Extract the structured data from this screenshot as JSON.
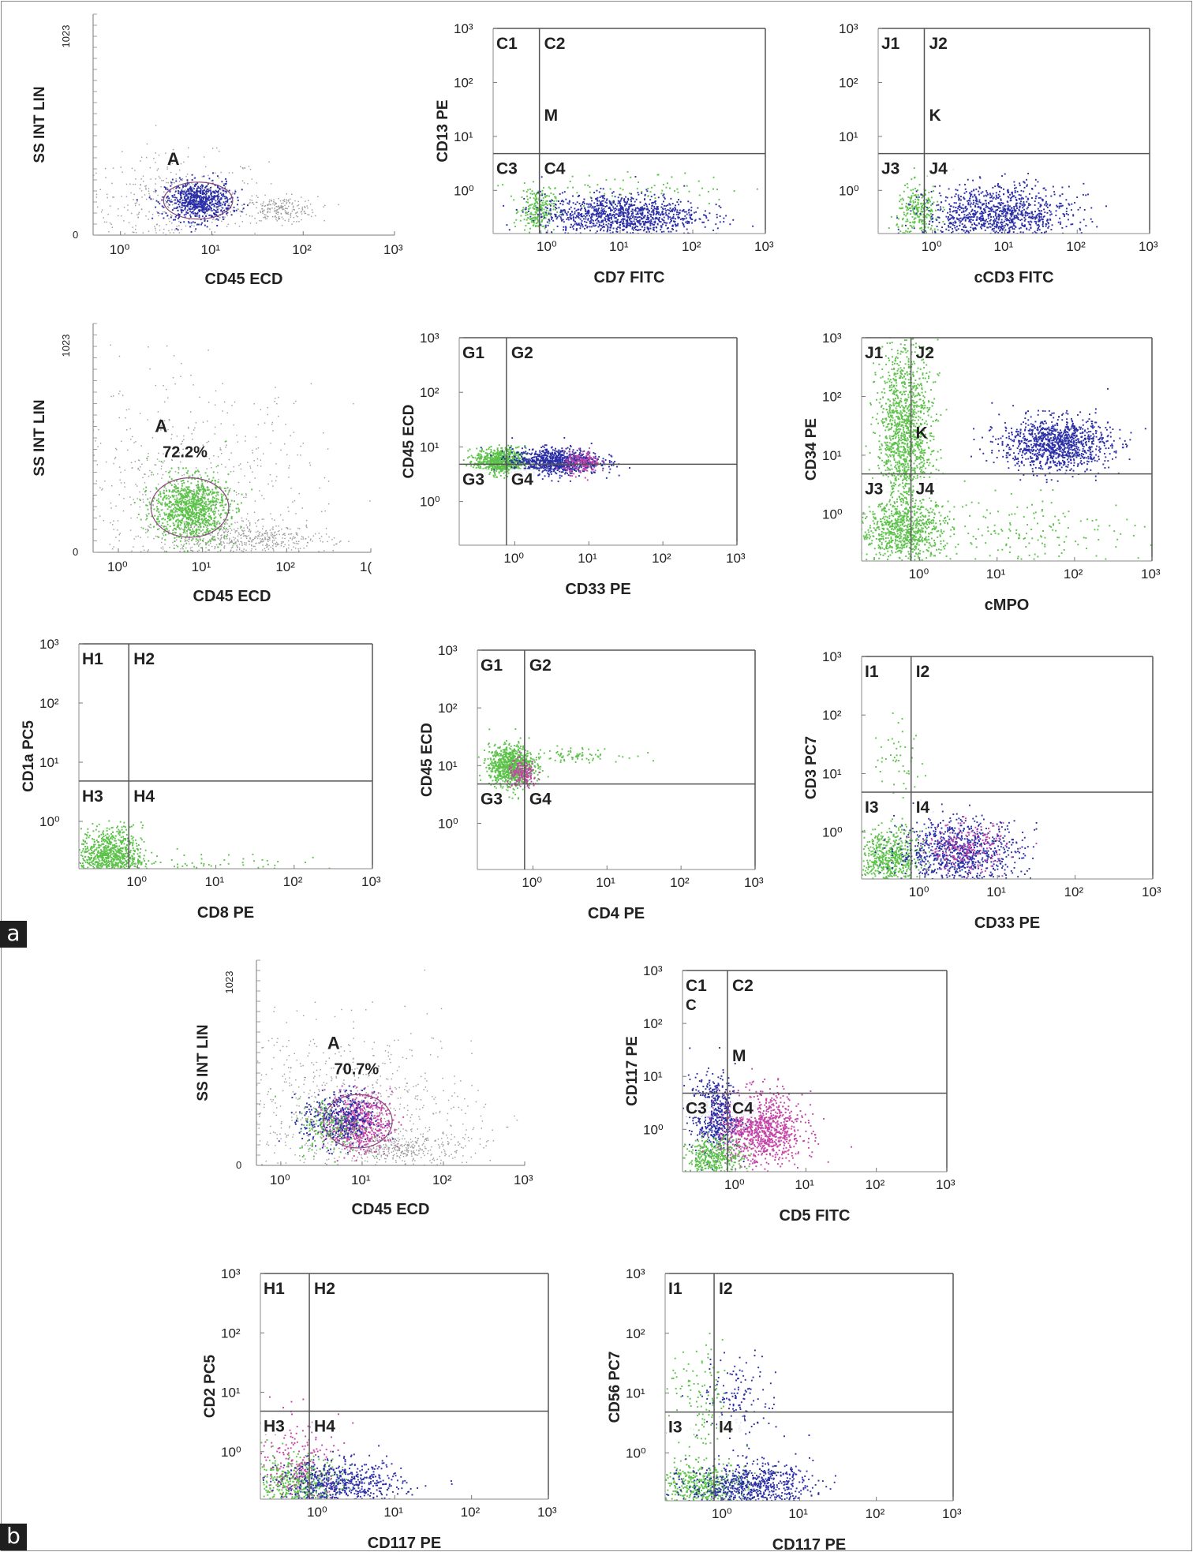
{
  "figure": {
    "panel_labels": [
      "a",
      "b"
    ],
    "colors": {
      "gray": "#9c9c9c",
      "blue": "#2b2fa6",
      "green": "#5cc24a",
      "magenta": "#c445a8",
      "red": "#d2342c",
      "frame": "#555555"
    }
  },
  "plots": [
    {
      "id": "p1",
      "type": "scatter-side",
      "panel": "a",
      "ylabel": "SS INT LIN",
      "xlabel": "CD45 ECD",
      "yticks": [
        "1023",
        "0"
      ],
      "xticks": [
        "10⁰",
        "10¹",
        "10²",
        "10³"
      ],
      "gate": "A",
      "percent": "",
      "clusters": [
        {
          "color": "gray",
          "center": [
            0.6,
            150
          ],
          "spread": [
            0.5,
            110
          ],
          "count": 420
        },
        {
          "color": "gray",
          "center": [
            1.75,
            120
          ],
          "spread": [
            0.2,
            30
          ],
          "count": 220
        },
        {
          "color": "blue",
          "center": [
            0.85,
            160
          ],
          "spread": [
            0.18,
            45
          ],
          "count": 700
        }
      ]
    },
    {
      "id": "p2",
      "type": "quadrant",
      "panel": "a",
      "ylabel": "CD13 PE",
      "xlabel": "CD7 FITC",
      "xticks": [
        "10⁰",
        "10¹",
        "10²",
        "10³"
      ],
      "yticks": [
        "10³",
        "10²",
        "10¹",
        "10⁰"
      ],
      "quadrants": [
        "C1",
        "C2",
        "C3",
        "C4"
      ],
      "extra_label": "M",
      "clusters": [
        {
          "color": "green",
          "center": [
            -0.15,
            -0.35
          ],
          "spread": [
            0.12,
            0.2
          ],
          "count": 220
        },
        {
          "color": "green",
          "center": [
            1.0,
            0.05
          ],
          "spread": [
            0.9,
            0.15
          ],
          "count": 80
        },
        {
          "color": "blue",
          "center": [
            1.0,
            -0.45
          ],
          "spread": [
            0.55,
            0.2
          ],
          "count": 1100
        }
      ]
    },
    {
      "id": "p3",
      "type": "quadrant",
      "panel": "a",
      "ylabel": "",
      "xlabel": "cCD3 FITC",
      "xticks": [
        "10⁰",
        "10¹",
        "10²",
        "10³"
      ],
      "yticks": [
        "10³",
        "10²",
        "10¹",
        "10⁰"
      ],
      "quadrants": [
        "J1",
        "J2",
        "J3",
        "J4"
      ],
      "extra_label": "K",
      "clusters": [
        {
          "color": "green",
          "center": [
            -0.2,
            -0.4
          ],
          "spread": [
            0.15,
            0.25
          ],
          "count": 260
        },
        {
          "color": "blue",
          "center": [
            0.9,
            -0.45
          ],
          "spread": [
            0.5,
            0.28
          ],
          "count": 1100
        }
      ]
    },
    {
      "id": "p4",
      "type": "scatter-side",
      "panel": "a",
      "ylabel": "SS INT LIN",
      "xlabel": "CD45 ECD",
      "yticks": [
        "1023",
        "0"
      ],
      "xticks": [
        "10⁰",
        "10¹",
        "10²",
        "1("
      ],
      "gate": "A",
      "percent": "72.2%",
      "clusters": [
        {
          "color": "gray",
          "center": [
            0.8,
            250
          ],
          "spread": [
            0.8,
            240
          ],
          "count": 700
        },
        {
          "color": "gray",
          "center": [
            1.5,
            60
          ],
          "spread": [
            0.5,
            35
          ],
          "count": 500
        },
        {
          "color": "green",
          "center": [
            0.85,
            200
          ],
          "spread": [
            0.22,
            70
          ],
          "count": 1000
        }
      ]
    },
    {
      "id": "p5",
      "type": "quadrant",
      "panel": "a",
      "ylabel": "CD45 ECD",
      "xlabel": "CD33 PE",
      "xticks": [
        "10⁰",
        "10¹",
        "10²",
        "10³"
      ],
      "yticks": [
        "10³",
        "10²",
        "10¹",
        "10⁰"
      ],
      "quadrants": [
        "G1",
        "G2",
        "G3",
        "G4"
      ],
      "extra_label": "",
      "clusters": [
        {
          "color": "green",
          "center": [
            -0.2,
            0.75
          ],
          "spread": [
            0.17,
            0.12
          ],
          "count": 700
        },
        {
          "color": "blue",
          "center": [
            0.55,
            0.75
          ],
          "spread": [
            0.3,
            0.12
          ],
          "count": 900
        },
        {
          "color": "magenta",
          "center": [
            0.9,
            0.72
          ],
          "spread": [
            0.12,
            0.1
          ],
          "count": 160
        }
      ]
    },
    {
      "id": "p6",
      "type": "quadrant",
      "panel": "a",
      "ylabel": "CD34 PE",
      "xlabel": "cMPO",
      "xticks": [
        "10⁰",
        "10¹",
        "10²",
        "10³"
      ],
      "yticks": [
        "10³",
        "10²",
        "10¹",
        "10⁰"
      ],
      "quadrants": [
        "J1",
        "J2",
        "J3",
        "J4"
      ],
      "extra_label": "K",
      "clusters": [
        {
          "color": "green",
          "center": [
            -0.2,
            1.3
          ],
          "spread": [
            0.18,
            0.8
          ],
          "count": 1400
        },
        {
          "color": "green",
          "center": [
            -0.2,
            -0.3
          ],
          "spread": [
            0.3,
            0.25
          ],
          "count": 700
        },
        {
          "color": "green",
          "center": [
            1.5,
            -0.3
          ],
          "spread": [
            0.7,
            0.3
          ],
          "count": 160
        },
        {
          "color": "blue",
          "center": [
            1.75,
            1.2
          ],
          "spread": [
            0.35,
            0.22
          ],
          "count": 1100
        }
      ]
    },
    {
      "id": "p7",
      "type": "quadrant",
      "panel": "a",
      "ylabel": "CD1a  PC5",
      "xlabel": "CD8  PE",
      "xticks": [
        "10⁰",
        "10¹",
        "10²",
        "10³"
      ],
      "yticks": [
        "10³",
        "10²",
        "10¹",
        "10⁰"
      ],
      "quadrants": [
        "H1",
        "H2",
        "H3",
        "H4"
      ],
      "extra_label": "",
      "clusters": [
        {
          "color": "green",
          "center": [
            -0.35,
            -0.6
          ],
          "spread": [
            0.2,
            0.25
          ],
          "count": 900
        },
        {
          "color": "green",
          "center": [
            0.8,
            -0.7
          ],
          "spread": [
            0.6,
            0.1
          ],
          "count": 60
        }
      ]
    },
    {
      "id": "p8",
      "type": "quadrant",
      "panel": "a",
      "ylabel": "CD45 ECD",
      "xlabel": "CD4  PE",
      "xticks": [
        "10⁰",
        "10¹",
        "10²",
        "10³"
      ],
      "yticks": [
        "10³",
        "10²",
        "10¹",
        "10⁰"
      ],
      "quadrants": [
        "G1",
        "G2",
        "G3",
        "G4"
      ],
      "extra_label": "",
      "clusters": [
        {
          "color": "green",
          "center": [
            -0.3,
            1.0
          ],
          "spread": [
            0.15,
            0.18
          ],
          "count": 900
        },
        {
          "color": "magenta",
          "center": [
            -0.15,
            0.85
          ],
          "spread": [
            0.1,
            0.12
          ],
          "count": 160
        },
        {
          "color": "green",
          "center": [
            0.5,
            1.2
          ],
          "spread": [
            0.35,
            0.06
          ],
          "count": 80
        }
      ]
    },
    {
      "id": "p9",
      "type": "quadrant",
      "panel": "a",
      "ylabel": "CD3 PC7",
      "xlabel": "CD33 PE",
      "xticks": [
        "10⁰",
        "10¹",
        "10²",
        "10³"
      ],
      "yticks": [
        "10³",
        "10²",
        "10¹",
        "10⁰"
      ],
      "quadrants": [
        "I1",
        "I2",
        "I3",
        "I4"
      ],
      "extra_label": "",
      "clusters": [
        {
          "color": "green",
          "center": [
            -0.4,
            -0.45
          ],
          "spread": [
            0.2,
            0.25
          ],
          "count": 600
        },
        {
          "color": "blue",
          "center": [
            0.5,
            -0.35
          ],
          "spread": [
            0.4,
            0.3
          ],
          "count": 900
        },
        {
          "color": "magenta",
          "center": [
            0.6,
            -0.25
          ],
          "spread": [
            0.25,
            0.2
          ],
          "count": 200
        },
        {
          "color": "green",
          "center": [
            -0.3,
            1.2
          ],
          "spread": [
            0.2,
            0.3
          ],
          "count": 50
        }
      ]
    },
    {
      "id": "p10",
      "type": "scatter-side",
      "panel": "b",
      "ylabel": "SS INT LIN",
      "xlabel": "CD45 ECD",
      "yticks": [
        "1023",
        "0"
      ],
      "xticks": [
        "10⁰",
        "10¹",
        "10²",
        "10³"
      ],
      "gate": "A",
      "percent": "70.7%",
      "clusters": [
        {
          "color": "gray",
          "center": [
            0.8,
            250
          ],
          "spread": [
            0.8,
            220
          ],
          "count": 800
        },
        {
          "color": "gray",
          "center": [
            1.5,
            90
          ],
          "spread": [
            0.4,
            40
          ],
          "count": 350
        },
        {
          "color": "magenta",
          "center": [
            0.95,
            220
          ],
          "spread": [
            0.2,
            70
          ],
          "count": 600
        },
        {
          "color": "blue",
          "center": [
            0.7,
            230
          ],
          "spread": [
            0.22,
            70
          ],
          "count": 400
        },
        {
          "color": "green",
          "center": [
            0.6,
            200
          ],
          "spread": [
            0.2,
            70
          ],
          "count": 150
        }
      ]
    },
    {
      "id": "p11",
      "type": "quadrant",
      "panel": "b",
      "ylabel": "CD117  PE",
      "xlabel": "CD5 FITC",
      "xticks": [
        "10⁰",
        "10¹",
        "10²",
        "10³"
      ],
      "yticks": [
        "10³",
        "10²",
        "10¹",
        "10⁰"
      ],
      "quadrants": [
        "C1",
        "C2",
        "C3",
        "C4"
      ],
      "extra_label": "M",
      "c_label": "C",
      "clusters": [
        {
          "color": "blue",
          "center": [
            -0.3,
            0.3
          ],
          "spread": [
            0.18,
            0.35
          ],
          "count": 600
        },
        {
          "color": "magenta",
          "center": [
            0.35,
            0.0
          ],
          "spread": [
            0.3,
            0.35
          ],
          "count": 1000
        },
        {
          "color": "green",
          "center": [
            -0.3,
            -0.55
          ],
          "spread": [
            0.2,
            0.2
          ],
          "count": 400
        }
      ]
    },
    {
      "id": "p12",
      "type": "quadrant",
      "panel": "b",
      "ylabel": "CD2 PC5",
      "xlabel": "CD117  PE",
      "xticks": [
        "10⁰",
        "10¹",
        "10²",
        "10³"
      ],
      "yticks": [
        "10³",
        "10²",
        "10¹",
        "10⁰"
      ],
      "quadrants": [
        "H1",
        "H2",
        "H3",
        "H4"
      ],
      "extra_label": "",
      "clusters": [
        {
          "color": "green",
          "center": [
            -0.3,
            -0.55
          ],
          "spread": [
            0.3,
            0.25
          ],
          "count": 500
        },
        {
          "color": "magenta",
          "center": [
            -0.3,
            -0.2
          ],
          "spread": [
            0.3,
            0.4
          ],
          "count": 250
        },
        {
          "color": "blue",
          "center": [
            0.3,
            -0.55
          ],
          "spread": [
            0.4,
            0.2
          ],
          "count": 600
        }
      ]
    },
    {
      "id": "p13",
      "type": "quadrant",
      "panel": "b",
      "ylabel": "CD56 PC7",
      "xlabel": "CD117  PE",
      "xticks": [
        "10⁰",
        "10¹",
        "10²",
        "10³"
      ],
      "yticks": [
        "10³",
        "10²",
        "10¹",
        "10⁰"
      ],
      "quadrants": [
        "I1",
        "I2",
        "I3",
        "I4"
      ],
      "extra_label": "",
      "clusters": [
        {
          "color": "green",
          "center": [
            -0.3,
            -0.55
          ],
          "spread": [
            0.3,
            0.2
          ],
          "count": 500
        },
        {
          "color": "blue",
          "center": [
            0.35,
            -0.55
          ],
          "spread": [
            0.4,
            0.2
          ],
          "count": 700
        },
        {
          "color": "blue",
          "center": [
            0.2,
            0.9
          ],
          "spread": [
            0.25,
            0.35
          ],
          "count": 150
        },
        {
          "color": "green",
          "center": [
            -0.3,
            0.8
          ],
          "spread": [
            0.2,
            0.5
          ],
          "count": 120
        }
      ]
    }
  ]
}
